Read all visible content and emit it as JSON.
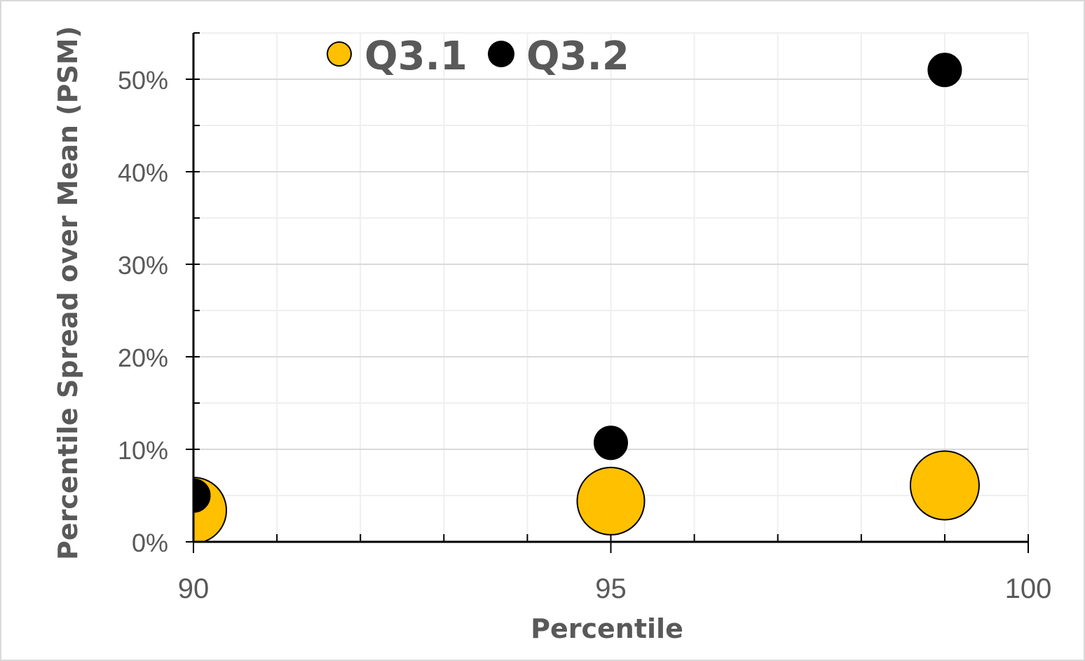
{
  "chart_data": {
    "type": "scatter",
    "subtype": "bubble",
    "title": "",
    "xlabel": "Percentile",
    "ylabel": "Percentile Spread over Mean (PSM)",
    "xlim": [
      90,
      100
    ],
    "ylim": [
      0,
      0.55
    ],
    "x_ticks": [
      90,
      95,
      100
    ],
    "x_tick_labels": [
      "90",
      "95",
      "100"
    ],
    "x_minor_step": 1,
    "y_ticks": [
      0,
      0.1,
      0.2,
      0.3,
      0.4,
      0.5
    ],
    "y_tick_labels": [
      "0%",
      "10%",
      "20%",
      "30%",
      "40%",
      "50%"
    ],
    "y_minor_step": 0.05,
    "grid": true,
    "legend_position": "top-inside",
    "series": [
      {
        "name": "Q3.1",
        "color": "#FFC000",
        "edgecolor": "#000000",
        "points": [
          {
            "x": 90,
            "y": 0.034,
            "size": 47
          },
          {
            "x": 95,
            "y": 0.044,
            "size": 48
          },
          {
            "x": 99,
            "y": 0.061,
            "size": 49
          }
        ]
      },
      {
        "name": "Q3.2",
        "color": "#000000",
        "edgecolor": "#000000",
        "points": [
          {
            "x": 90,
            "y": 0.05,
            "size": 24
          },
          {
            "x": 95,
            "y": 0.107,
            "size": 24
          },
          {
            "x": 99,
            "y": 0.51,
            "size": 24
          }
        ]
      }
    ]
  },
  "legend": {
    "items": [
      {
        "label": "Q3.1",
        "color": "#FFC000"
      },
      {
        "label": "Q3.2",
        "color": "#000000"
      }
    ]
  },
  "axes": {
    "x_title": "Percentile",
    "y_title": "Percentile Spread over Mean (PSM)",
    "x_labels": [
      "90",
      "95",
      "100"
    ],
    "y_labels": [
      "0%",
      "10%",
      "20%",
      "30%",
      "40%",
      "50%"
    ]
  },
  "colors": {
    "major_grid": "#d9d9d9",
    "minor_grid": "#efefef",
    "axis": "#000000",
    "text": "#595959",
    "frame": "#d9d9d9"
  }
}
